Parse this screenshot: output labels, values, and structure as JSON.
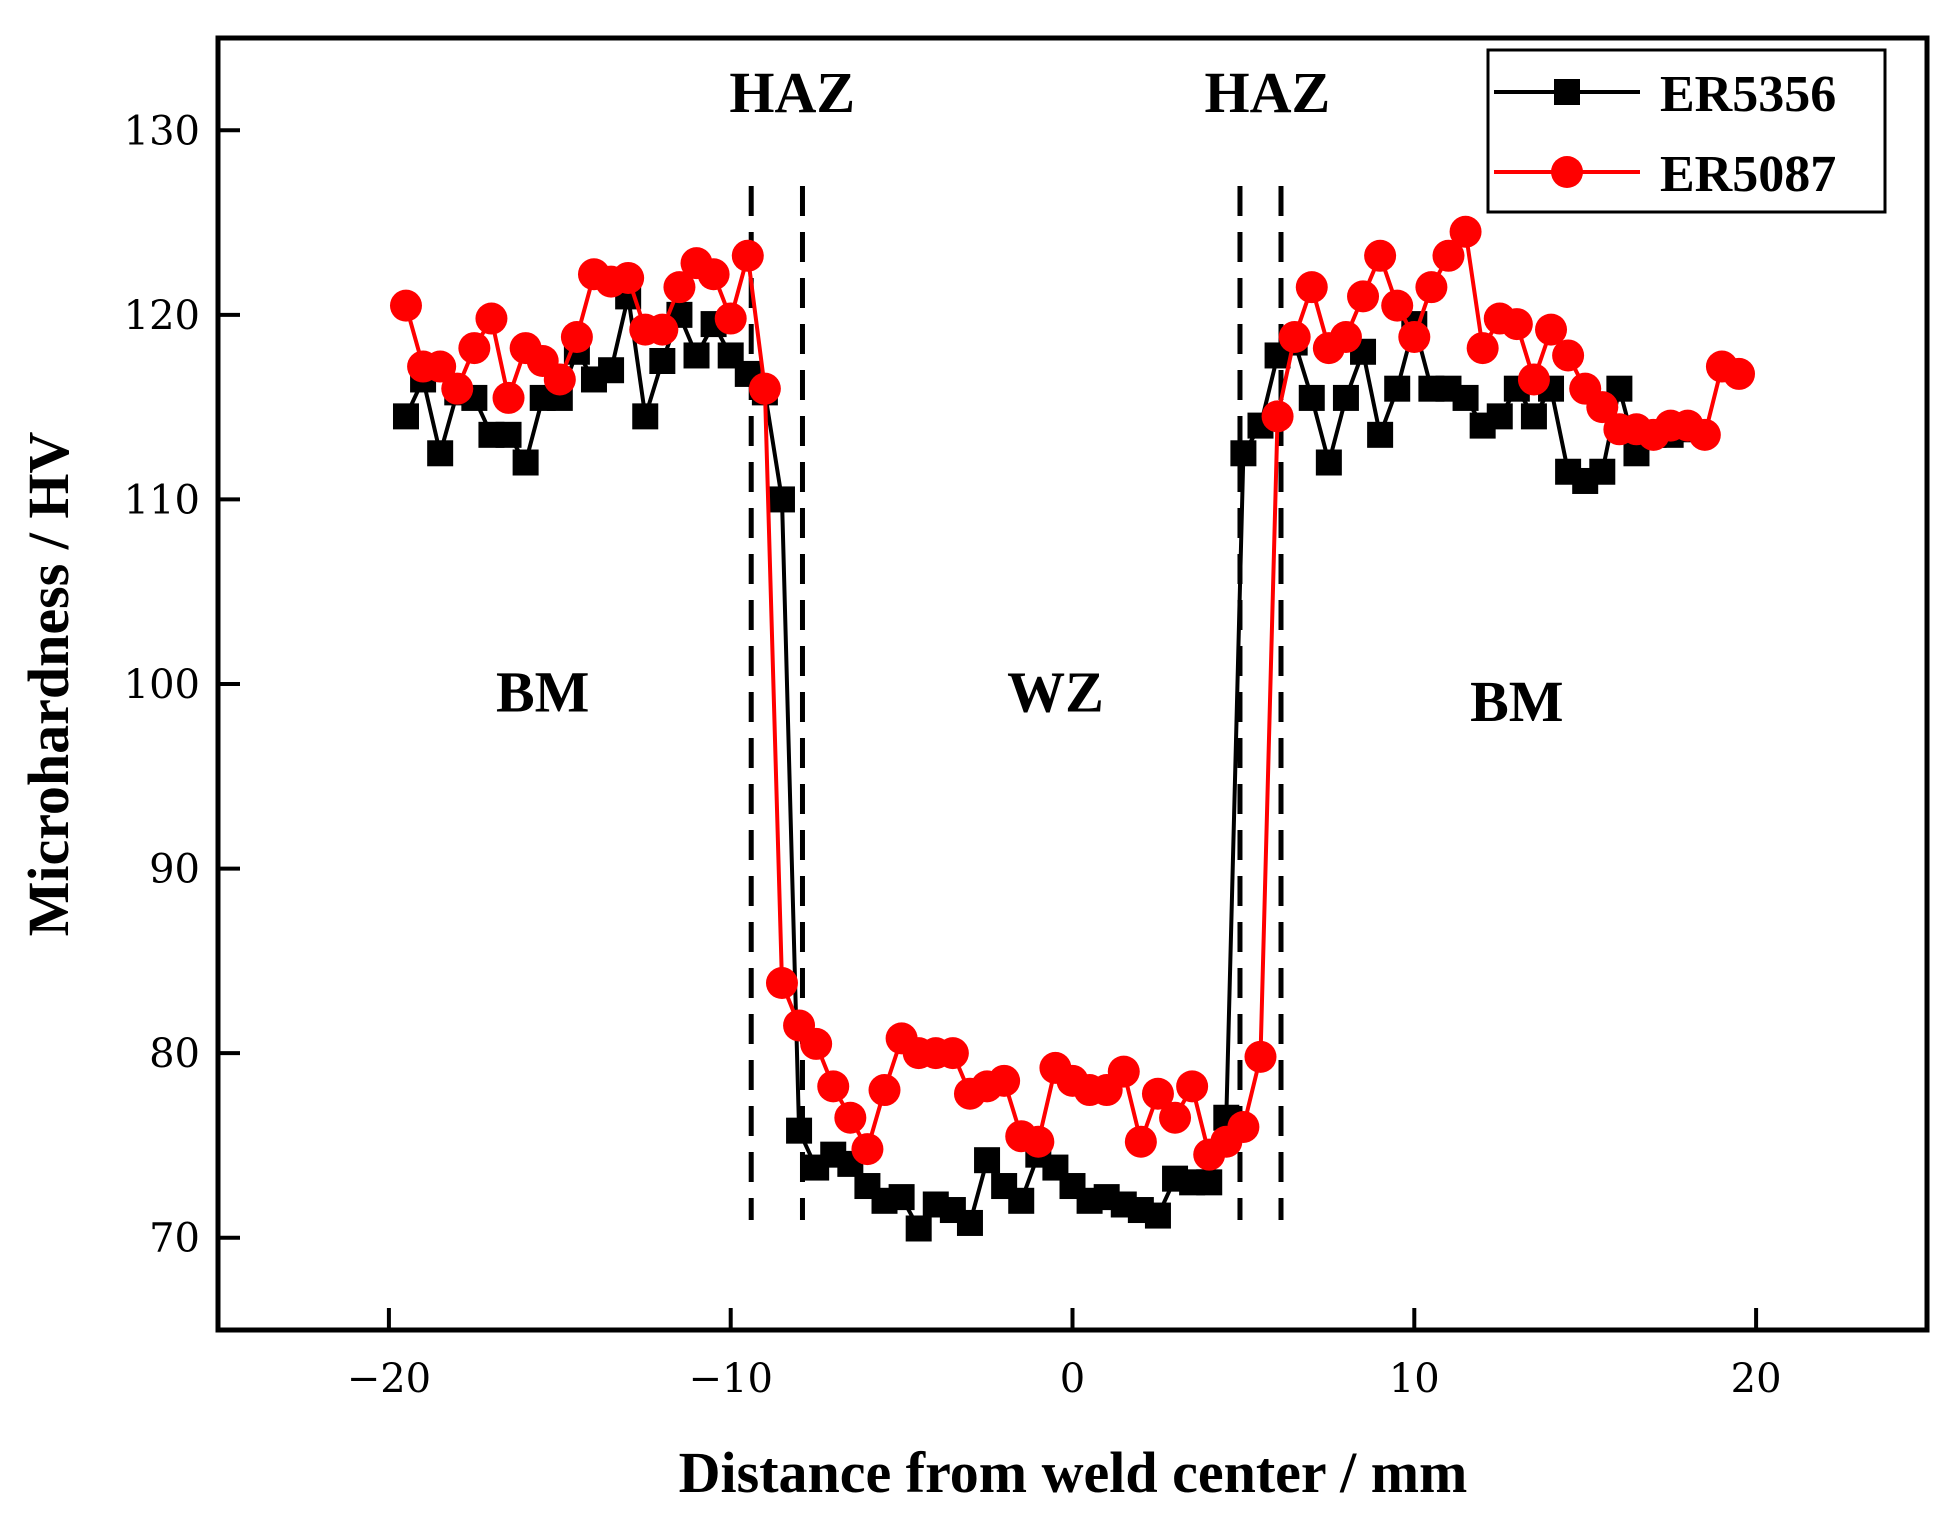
{
  "chart_data": {
    "type": "line",
    "title": "",
    "xlabel": "Distance from weld center / mm",
    "ylabel": "Microhardness / HV",
    "xlim": [
      -25,
      25
    ],
    "ylim": [
      65,
      135
    ],
    "xticks": [
      -20,
      -10,
      0,
      10,
      20
    ],
    "xtick_labels": [
      "−20",
      "−10",
      "0",
      "10",
      "20"
    ],
    "yticks": [
      70,
      80,
      90,
      100,
      110,
      120,
      130
    ],
    "ytick_labels": [
      "70",
      "80",
      "90",
      "100",
      "110",
      "120",
      "130"
    ],
    "grid": false,
    "legend_position": "top-right",
    "boundaries": [
      -9.4,
      -7.9,
      4.9,
      6.1
    ],
    "region_labels": [
      {
        "text": "HAZ",
        "x": -8.2,
        "y": 131
      },
      {
        "text": "HAZ",
        "x": 5.7,
        "y": 131
      },
      {
        "text": "BM",
        "x": -15.5,
        "y": 98.5
      },
      {
        "text": "WZ",
        "x": -0.5,
        "y": 98.5
      },
      {
        "text": "BM",
        "x": 13,
        "y": 98
      }
    ],
    "series": [
      {
        "name": "ER5356",
        "color": "#000000",
        "marker": "square",
        "x": [
          -19.5,
          -19.0,
          -18.5,
          -18.0,
          -17.5,
          -17.0,
          -16.5,
          -16.0,
          -15.5,
          -15.0,
          -14.5,
          -14.0,
          -13.5,
          -13.0,
          -12.5,
          -12.0,
          -11.5,
          -11.0,
          -10.5,
          -10.0,
          -9.5,
          -9.0,
          -8.5,
          -8.0,
          -7.5,
          -7.0,
          -6.5,
          -6.0,
          -5.5,
          -5.0,
          -4.5,
          -4.0,
          -3.5,
          -3.0,
          -2.5,
          -2.0,
          -1.5,
          -1.0,
          -0.5,
          0.0,
          0.5,
          1.0,
          1.5,
          2.0,
          2.5,
          3.0,
          3.5,
          4.0,
          4.5,
          5.0,
          5.5,
          6.0,
          6.5,
          7.0,
          7.5,
          8.0,
          8.5,
          9.0,
          9.5,
          10.0,
          10.5,
          11.0,
          11.5,
          12.0,
          12.5,
          13.0,
          13.5,
          14.0,
          14.5,
          15.0,
          15.5,
          16.0,
          16.5,
          17.0,
          17.5,
          18.0
        ],
        "values": [
          114.5,
          116.5,
          112.5,
          115.8,
          115.5,
          113.5,
          113.5,
          112.0,
          115.5,
          115.5,
          118.0,
          116.5,
          117.0,
          121.0,
          114.5,
          117.5,
          120.0,
          117.8,
          119.5,
          117.8,
          116.8,
          115.8,
          110.0,
          75.8,
          73.8,
          74.5,
          74.0,
          72.8,
          72.0,
          72.2,
          70.5,
          71.8,
          71.5,
          70.8,
          74.2,
          72.8,
          72.0,
          74.5,
          73.8,
          72.8,
          72.0,
          72.2,
          71.8,
          71.5,
          71.2,
          73.2,
          73.0,
          73.0,
          76.5,
          112.5,
          114.0,
          117.8,
          118.5,
          115.5,
          112.0,
          115.5,
          118.0,
          113.5,
          116.0,
          119.5,
          116.0,
          116.0,
          115.5,
          114.0,
          114.5,
          116.0,
          114.5,
          116.0,
          111.5,
          111.0,
          111.5,
          116.0,
          112.5,
          113.5,
          113.5,
          113.8
        ]
      },
      {
        "name": "ER5087",
        "color": "#ff0000",
        "marker": "circle",
        "x": [
          -19.5,
          -19.0,
          -18.5,
          -18.0,
          -17.5,
          -17.0,
          -16.5,
          -16.0,
          -15.5,
          -15.0,
          -14.5,
          -14.0,
          -13.5,
          -13.0,
          -12.5,
          -12.0,
          -11.5,
          -11.0,
          -10.5,
          -10.0,
          -9.5,
          -9.0,
          -8.5,
          -8.0,
          -7.5,
          -7.0,
          -6.5,
          -6.0,
          -5.5,
          -5.0,
          -4.5,
          -4.0,
          -3.5,
          -3.0,
          -2.5,
          -2.0,
          -1.5,
          -1.0,
          -0.5,
          0.0,
          0.5,
          1.0,
          1.5,
          2.0,
          2.5,
          3.0,
          3.5,
          4.0,
          4.5,
          5.0,
          5.5,
          6.0,
          6.5,
          7.0,
          7.5,
          8.0,
          8.5,
          9.0,
          9.5,
          10.0,
          10.5,
          11.0,
          11.5,
          12.0,
          12.5,
          13.0,
          13.5,
          14.0,
          14.5,
          15.0,
          15.5,
          16.0,
          16.5,
          17.0,
          17.5,
          18.0,
          18.5,
          19.0,
          19.5
        ],
        "values": [
          120.5,
          117.2,
          117.2,
          116.0,
          118.2,
          119.8,
          115.5,
          118.2,
          117.5,
          116.5,
          118.8,
          122.2,
          121.8,
          122.0,
          119.2,
          119.2,
          121.5,
          122.8,
          122.2,
          119.8,
          123.2,
          116.0,
          83.8,
          81.5,
          80.5,
          78.2,
          76.5,
          74.8,
          78.0,
          80.8,
          80.0,
          80.0,
          80.0,
          77.8,
          78.2,
          78.5,
          75.5,
          75.2,
          79.2,
          78.5,
          78.0,
          78.0,
          79.0,
          75.2,
          77.8,
          76.5,
          78.2,
          74.5,
          75.2,
          76.0,
          79.8,
          114.5,
          118.8,
          121.5,
          118.2,
          118.8,
          121.0,
          123.2,
          120.5,
          118.8,
          121.5,
          123.2,
          124.5,
          118.2,
          119.8,
          119.5,
          116.5,
          119.2,
          117.8,
          116.0,
          115.0,
          113.8,
          113.8,
          113.5,
          114.0,
          114.0,
          113.5,
          117.2,
          116.8
        ]
      }
    ]
  }
}
